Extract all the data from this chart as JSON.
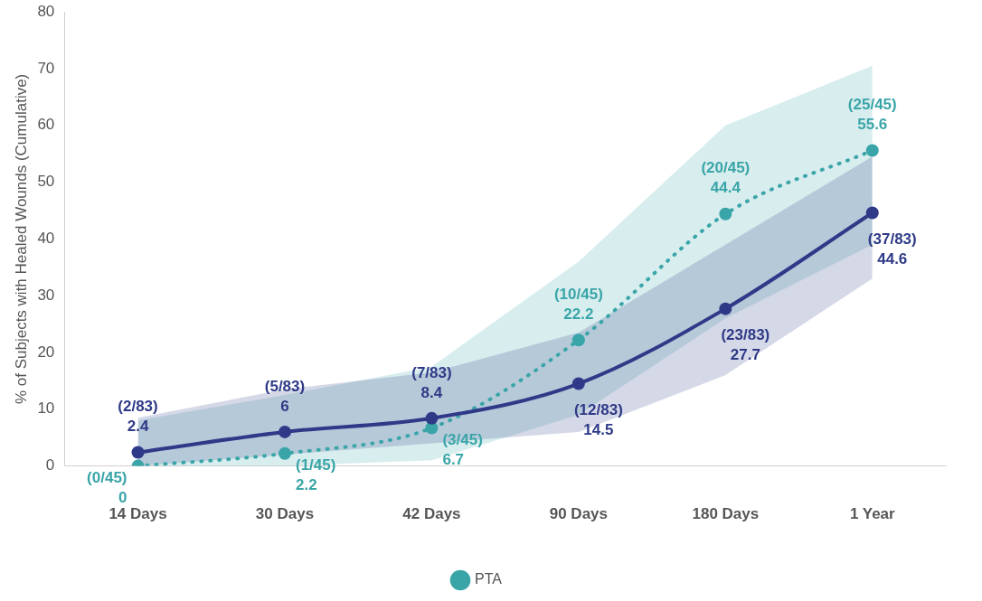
{
  "chart_data": {
    "type": "line",
    "ylabel": "% of Subjects with Healed Wounds (Cumulative)",
    "categories": [
      "14 Days",
      "30 Days",
      "42 Days",
      "90 Days",
      "180 Days",
      "1 Year"
    ],
    "series": [
      {
        "color": "#2e3a87",
        "line_style": "solid",
        "values": [
          2.4,
          6,
          8.4,
          14.5,
          27.7,
          44.6
        ],
        "lower": [
          0,
          2,
          4,
          6,
          16,
          33
        ],
        "upper": [
          8.5,
          13.5,
          16.5,
          23.5,
          39,
          54.5
        ],
        "value_labels": [
          "(2/83)\n2.4",
          "(5/83)\n6",
          "(7/83)\n8.4",
          "(12/83)\n14.5",
          "(23/83)\n27.7",
          "(37/83)\n44.6"
        ]
      },
      {
        "name": "PTA",
        "color": "#3aa5a8",
        "line_style": "dotted",
        "values": [
          0,
          2.2,
          6.7,
          22.2,
          44.4,
          55.6
        ],
        "lower": [
          0,
          0,
          1,
          9,
          26,
          39
        ],
        "upper": [
          8,
          12.5,
          17.5,
          36,
          60,
          70.5
        ],
        "value_labels": [
          "(0/45)\n0",
          "(1/45)\n2.2",
          "(3/45)\n6.7",
          "(10/45)\n22.2",
          "(20/45)\n44.4",
          "(25/45)\n55.6"
        ]
      }
    ],
    "ylim": [
      0,
      80
    ],
    "yticks": [
      0,
      10,
      20,
      30,
      40,
      50,
      60,
      70,
      80
    ],
    "grid": false,
    "legend": "bottom",
    "marker": "circle"
  }
}
